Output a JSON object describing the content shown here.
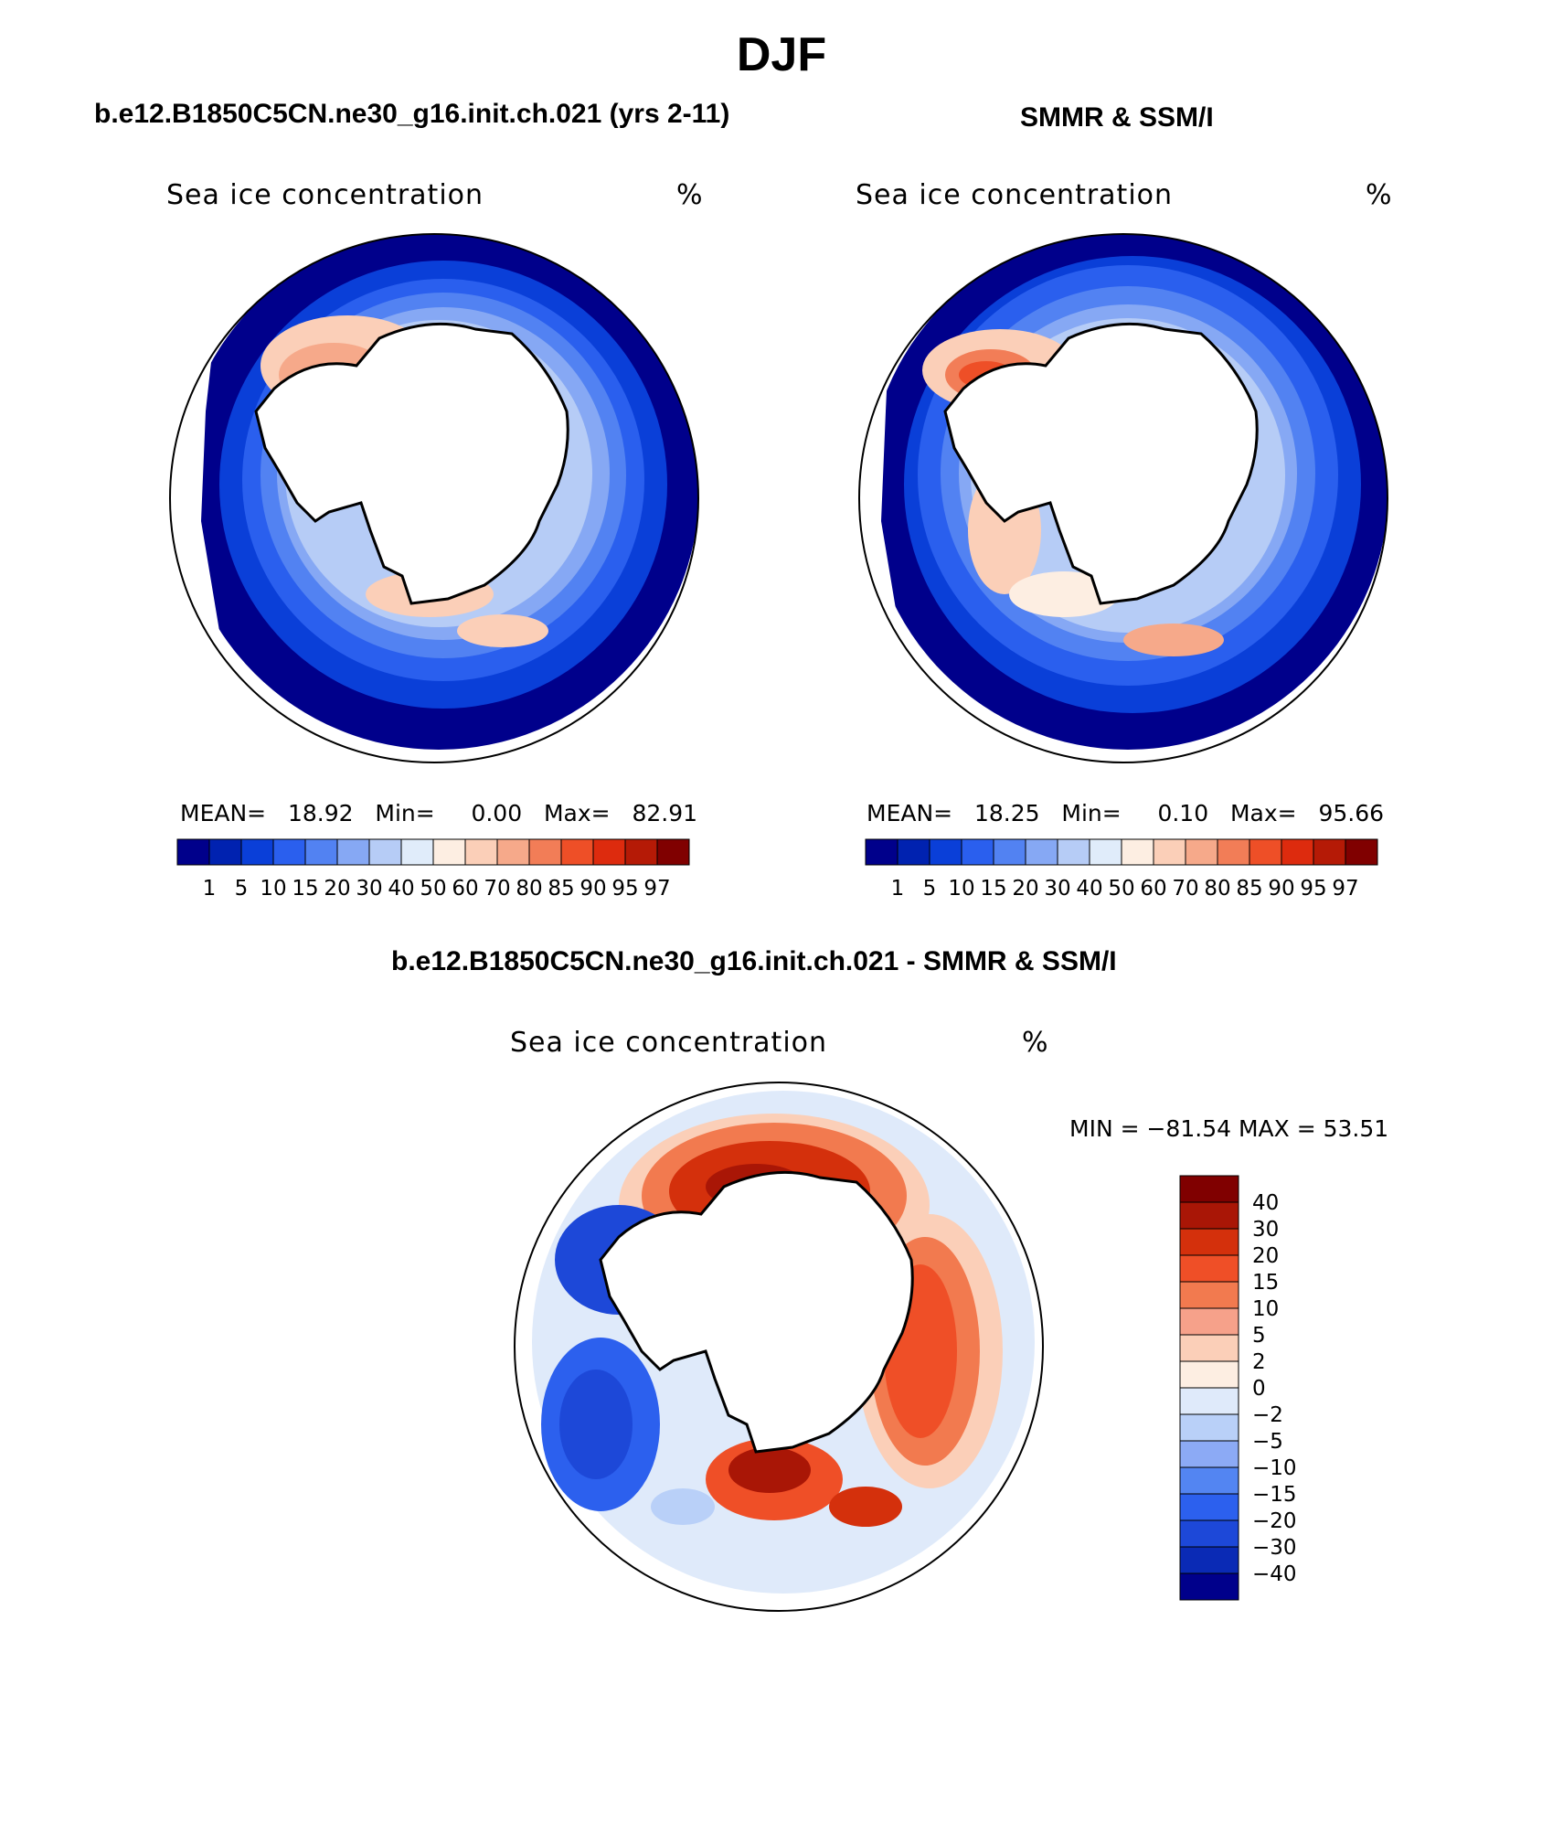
{
  "title": "DJF",
  "units": "%",
  "colors": {
    "concentration_palette": [
      "#00008b",
      "#0022b0",
      "#0a3fd8",
      "#2a5fee",
      "#5282f2",
      "#86a8f4",
      "#b6ccf6",
      "#e0ecfa",
      "#fdeee2",
      "#fbcfb8",
      "#f6a98a",
      "#f27d57",
      "#ee4f27",
      "#dd2b0e",
      "#b51a06",
      "#800000"
    ],
    "difference_palette": [
      "#00008b",
      "#0a2ab5",
      "#1d48d8",
      "#2c60ee",
      "#5385f2",
      "#8caaf5",
      "#b9d0f8",
      "#dfeafa",
      "#fdeee2",
      "#fbcfb8",
      "#f6a18a",
      "#f27a4f",
      "#ef4f27",
      "#d4300c",
      "#a91606",
      "#800000"
    ],
    "land": "#ffffff",
    "coast": "#000000"
  },
  "panels": [
    {
      "title": "b.e12.B1850C5CN.ne30_g16.init.ch.021 (yrs 2-11)",
      "variable": "Sea ice concentration",
      "units": "%",
      "stats": {
        "mean_label": "MEAN=",
        "mean": "18.92",
        "min_label": "Min=",
        "min": "0.00",
        "max_label": "Max=",
        "max": "82.91"
      },
      "colorbar_labels": [
        "1",
        "5",
        "10",
        "15",
        "20",
        "30",
        "40",
        "50",
        "60",
        "70",
        "80",
        "85",
        "90",
        "95",
        "97"
      ]
    },
    {
      "title": "SMMR & SSM/I",
      "variable": "Sea ice concentration",
      "units": "%",
      "stats": {
        "mean_label": "MEAN=",
        "mean": "18.25",
        "min_label": "Min=",
        "min": "0.10",
        "max_label": "Max=",
        "max": "95.66"
      },
      "colorbar_labels": [
        "1",
        "5",
        "10",
        "15",
        "20",
        "30",
        "40",
        "50",
        "60",
        "70",
        "80",
        "85",
        "90",
        "95",
        "97"
      ]
    }
  ],
  "difference": {
    "title": "b.e12.B1850C5CN.ne30_g16.init.ch.021 - SMMR & SSM/I",
    "variable": "Sea ice concentration",
    "units": "%",
    "minmax": "MIN = −81.54 MAX =   53.51",
    "colorbar_labels": [
      "40",
      "30",
      "20",
      "15",
      "10",
      "5",
      "2",
      "0",
      "−2",
      "−5",
      "−10",
      "−15",
      "−20",
      "−30",
      "−40"
    ]
  }
}
